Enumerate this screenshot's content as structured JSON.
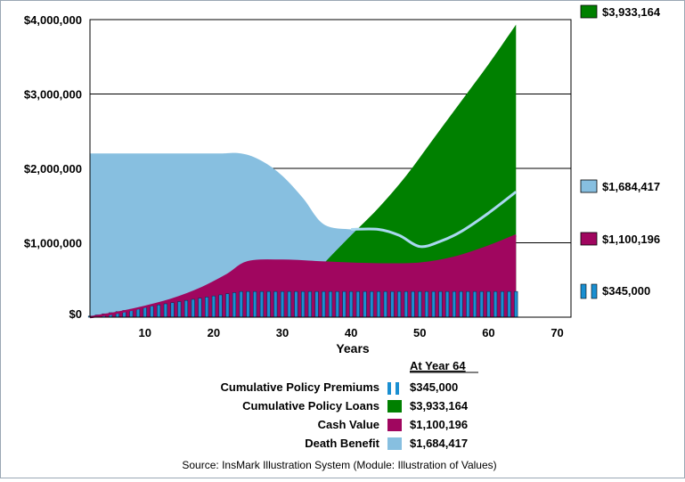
{
  "chart_data": {
    "type": "area",
    "xlabel": "Years",
    "ylabel": "",
    "xlim": [
      2,
      72
    ],
    "ylim": [
      0,
      4000000
    ],
    "xticks": [
      10,
      20,
      30,
      40,
      50,
      60,
      70
    ],
    "yticks": [
      0,
      1000000,
      2000000,
      3000000,
      4000000
    ],
    "ytick_labels": [
      "$0",
      "$1,000,000",
      "$2,000,000",
      "$3,000,000",
      "$4,000,000"
    ],
    "grid": "horizontal",
    "series": [
      {
        "name": "Death Benefit",
        "render": "area",
        "color": "#87bfe0",
        "x": [
          2,
          10,
          20,
          24,
          27,
          30,
          33,
          36,
          40,
          44,
          47,
          50,
          53,
          56,
          60,
          64
        ],
        "values": [
          2200000,
          2200000,
          2200000,
          2200000,
          2100000,
          1900000,
          1600000,
          1250000,
          1180000,
          1180000,
          1100000,
          950000,
          1020000,
          1150000,
          1400000,
          1684417
        ]
      },
      {
        "name": "Cumulative Policy Loans",
        "render": "area",
        "color": "#008000",
        "x": [
          27,
          30,
          33,
          36,
          40,
          44,
          48,
          52,
          56,
          60,
          64
        ],
        "values": [
          0,
          150000,
          420000,
          720000,
          1100000,
          1470000,
          1900000,
          2400000,
          2900000,
          3400000,
          3933164
        ]
      },
      {
        "name": "Cash Value",
        "render": "area",
        "color": "#a0065f",
        "x": [
          2,
          6,
          10,
          14,
          18,
          22,
          25,
          30,
          35,
          40,
          45,
          50,
          55,
          60,
          64
        ],
        "values": [
          0,
          60000,
          140000,
          240000,
          380000,
          570000,
          740000,
          760000,
          740000,
          720000,
          710000,
          720000,
          800000,
          950000,
          1100196
        ]
      },
      {
        "name": "Cumulative Policy Premiums",
        "render": "bars",
        "color": "#1a8fd1",
        "x": [
          2,
          3,
          4,
          5,
          6,
          7,
          8,
          9,
          10,
          11,
          12,
          13,
          14,
          15,
          16,
          17,
          18,
          19,
          20,
          21,
          22,
          23
        ],
        "values": [
          15000,
          30000,
          45000,
          60000,
          75000,
          90000,
          105000,
          120000,
          135000,
          150000,
          165000,
          180000,
          195000,
          210000,
          225000,
          240000,
          255000,
          270000,
          285000,
          300000,
          315000,
          330000
        ],
        "flat_value": 345000,
        "flat_from": 24,
        "flat_to": 64
      }
    ],
    "end_labels": {
      "loans": "$3,933,164",
      "death_benefit": "$1,684,417",
      "cash_value": "$1,100,196",
      "premiums": "$345,000"
    },
    "legend": {
      "header": "At Year 64",
      "items": [
        {
          "label": "Cumulative Policy Premiums",
          "value": "$345,000",
          "color": "#1a8fd1",
          "swatch": "bars"
        },
        {
          "label": "Cumulative Policy Loans",
          "value": "$3,933,164",
          "color": "#008000",
          "swatch": "solid"
        },
        {
          "label": "Cash Value",
          "value": "$1,100,196",
          "color": "#a0065f",
          "swatch": "solid"
        },
        {
          "label": "Death Benefit",
          "value": "$1,684,417",
          "color": "#87bfe0",
          "swatch": "solid"
        }
      ]
    }
  },
  "source_text": "Source: InsMark Illustration System (Module: Illustration of Values)"
}
